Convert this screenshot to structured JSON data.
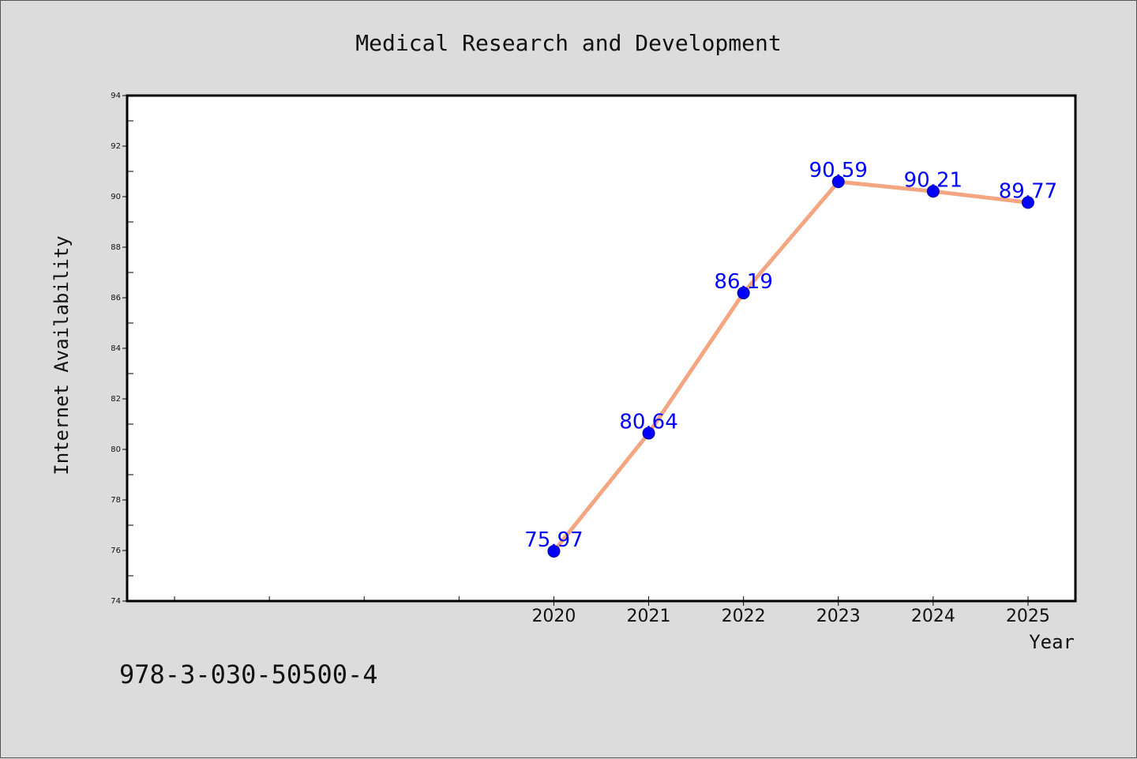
{
  "chart_data": {
    "type": "line",
    "title": "Medical Research and Development",
    "xlabel": "Year",
    "ylabel": "Internet Availability",
    "x": [
      2020,
      2021,
      2022,
      2023,
      2024,
      2025
    ],
    "x_ticks": [
      "2020",
      "2021",
      "2022",
      "2023",
      "2024",
      "2025"
    ],
    "xlim": [
      2015.5,
      2025.5
    ],
    "ylim": [
      74,
      94
    ],
    "y_ticks": [
      "74",
      "76",
      "78",
      "80",
      "82",
      "84",
      "86",
      "88",
      "90",
      "92",
      "94"
    ],
    "series": [
      {
        "values": [
          75.97,
          80.64,
          86.19,
          90.59,
          90.21,
          89.77
        ],
        "labels": [
          "75.97",
          "80.64",
          "86.19",
          "90.59",
          "90.21",
          "89.77"
        ],
        "line_color": "#f4a582",
        "marker_color": "#0000ff",
        "label_color": "#0000ff"
      }
    ],
    "grid": false,
    "legend": "none"
  },
  "annotation": "978-3-030-50500-4"
}
